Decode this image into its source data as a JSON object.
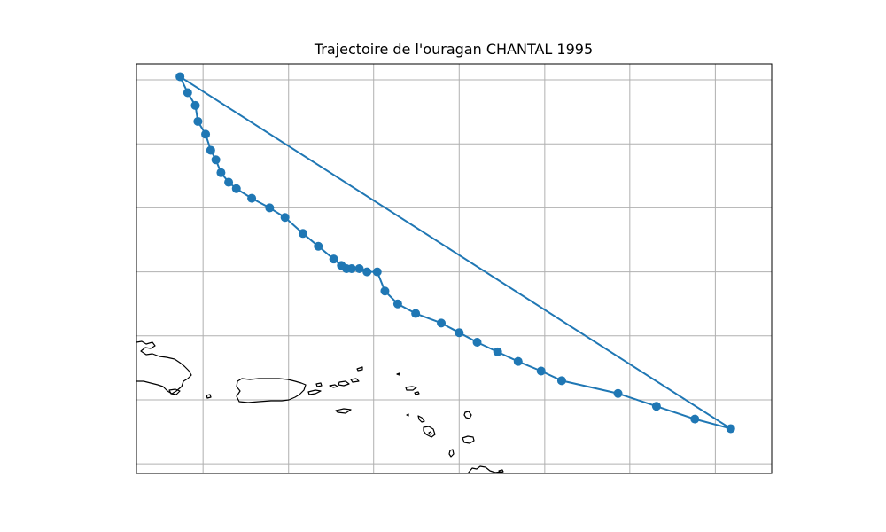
{
  "chart_data": {
    "type": "line",
    "title": "Trajectoire de l'ouragan CHANTAL 1995",
    "xlabel": "",
    "ylabel": "",
    "grid": true,
    "legend": "none",
    "xlim": [
      -68.3,
      -55.9
    ],
    "ylim": [
      16.3,
      22.7
    ],
    "gridlines_x": [
      -67.0,
      -65.33,
      -63.67,
      -62.0,
      -60.33,
      -58.67,
      -57.0
    ],
    "gridlines_y": [
      16.45,
      17.45,
      18.45,
      19.45,
      20.45,
      21.45,
      22.45
    ],
    "series": [
      {
        "color": "#1f77b4",
        "marker": "circle",
        "x": [
          -56.7,
          -57.4,
          -58.15,
          -58.9,
          -60.0,
          -60.4,
          -60.85,
          -61.25,
          -61.65,
          -62.0,
          -62.35,
          -62.85,
          -63.2,
          -63.45,
          -63.6,
          -63.8,
          -63.95,
          -64.1,
          -64.2,
          -64.3,
          -64.45,
          -64.75,
          -65.05,
          -65.4,
          -65.7,
          -66.05,
          -66.35,
          -66.5,
          -66.65,
          -66.75,
          -66.85,
          -66.95,
          -67.1,
          -67.15,
          -67.3,
          -67.45
        ],
        "y": [
          17.0,
          17.15,
          17.35,
          17.55,
          17.75,
          17.9,
          18.05,
          18.2,
          18.35,
          18.5,
          18.65,
          18.8,
          18.95,
          19.15,
          19.45,
          19.45,
          19.5,
          19.5,
          19.5,
          19.55,
          19.65,
          19.85,
          20.05,
          20.3,
          20.45,
          20.6,
          20.75,
          20.85,
          21.0,
          21.2,
          21.35,
          21.6,
          21.8,
          22.05,
          22.25,
          22.5
        ]
      }
    ],
    "closing_segment": {
      "from": [
        -67.45,
        22.5
      ],
      "to": [
        -56.7,
        17.0
      ]
    }
  }
}
